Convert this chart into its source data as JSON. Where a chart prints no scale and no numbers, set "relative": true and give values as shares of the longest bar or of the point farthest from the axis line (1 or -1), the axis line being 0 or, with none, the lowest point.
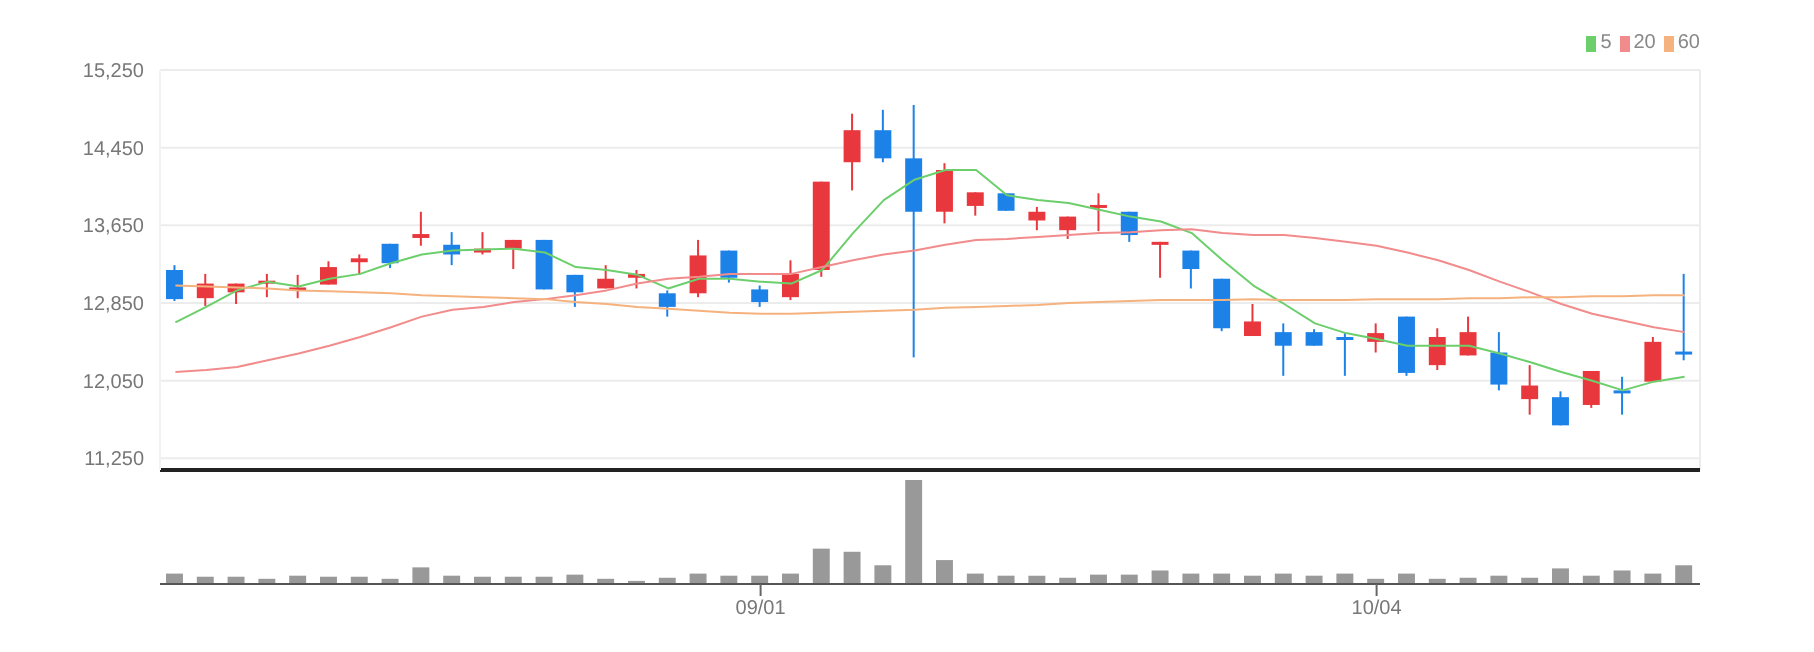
{
  "chart_data": [
    {
      "type": "candlestick",
      "categories": [
        null,
        null,
        null,
        null,
        null,
        null,
        null,
        null,
        null,
        null,
        null,
        null,
        null,
        null,
        null,
        null,
        null,
        null,
        null,
        null,
        null,
        null,
        null,
        null,
        null,
        null,
        null,
        null,
        null,
        null,
        null,
        null,
        null,
        null,
        null,
        null,
        null,
        null,
        null,
        null,
        null,
        null,
        null,
        null,
        null,
        null,
        null,
        null,
        null,
        null
      ],
      "ohlc": [
        [
          13190,
          13240,
          12870,
          12890
        ],
        [
          12900,
          13150,
          12820,
          13050
        ],
        [
          12960,
          13050,
          12840,
          13050
        ],
        [
          13050,
          13150,
          12910,
          13080
        ],
        [
          12990,
          13140,
          12900,
          13010
        ],
        [
          13040,
          13280,
          13040,
          13220
        ],
        [
          13270,
          13350,
          13140,
          13310
        ],
        [
          13460,
          13460,
          13210,
          13260
        ],
        [
          13520,
          13790,
          13440,
          13560
        ],
        [
          13450,
          13580,
          13240,
          13350
        ],
        [
          13370,
          13580,
          13350,
          13410
        ],
        [
          13410,
          13500,
          13200,
          13500
        ],
        [
          13500,
          13500,
          12990,
          12990
        ],
        [
          13140,
          13140,
          12810,
          12960
        ],
        [
          13000,
          13240,
          13000,
          13100
        ],
        [
          13110,
          13190,
          13000,
          13150
        ],
        [
          12950,
          12980,
          12710,
          12810
        ],
        [
          12950,
          13500,
          12910,
          13340
        ],
        [
          13390,
          13390,
          13060,
          13110
        ],
        [
          12990,
          13030,
          12810,
          12860
        ],
        [
          12910,
          13290,
          12880,
          13150
        ],
        [
          13190,
          14100,
          13120,
          14100
        ],
        [
          14300,
          14800,
          14010,
          14630
        ],
        [
          14630,
          14840,
          14300,
          14340
        ],
        [
          14340,
          14890,
          12290,
          13790
        ],
        [
          13790,
          14290,
          13670,
          14220
        ],
        [
          13850,
          13990,
          13750,
          13990
        ],
        [
          13980,
          13980,
          13800,
          13800
        ],
        [
          13700,
          13840,
          13600,
          13790
        ],
        [
          13600,
          13740,
          13510,
          13740
        ],
        [
          13840,
          13980,
          13590,
          13860
        ],
        [
          13790,
          13790,
          13480,
          13550
        ],
        [
          13460,
          13480,
          13110,
          13480
        ],
        [
          13390,
          13390,
          13000,
          13200
        ],
        [
          13100,
          13100,
          12560,
          12590
        ],
        [
          12510,
          12840,
          12510,
          12660
        ],
        [
          12550,
          12640,
          12100,
          12410
        ],
        [
          12550,
          12580,
          12410,
          12410
        ],
        [
          12500,
          12540,
          12100,
          12470
        ],
        [
          12450,
          12640,
          12340,
          12540
        ],
        [
          12710,
          12710,
          12100,
          12130
        ],
        [
          12210,
          12590,
          12160,
          12500
        ],
        [
          12310,
          12710,
          12310,
          12550
        ],
        [
          12340,
          12550,
          11950,
          12010
        ],
        [
          11860,
          12210,
          11700,
          12000
        ],
        [
          11880,
          11940,
          11590,
          11590
        ],
        [
          11800,
          12150,
          11770,
          12150
        ],
        [
          11950,
          12090,
          11700,
          11930
        ],
        [
          12040,
          12500,
          12040,
          12450
        ],
        [
          12350,
          13150,
          12260,
          12320
        ]
      ],
      "colors": [
        "#1d82e8",
        "#e8383d",
        "#e8383d",
        "#e8383d",
        "#e8383d",
        "#e8383d",
        "#e8383d",
        "#1d82e8",
        "#e8383d",
        "#1d82e8",
        "#e8383d",
        "#e8383d",
        "#1d82e8",
        "#1d82e8",
        "#e8383d",
        "#e8383d",
        "#1d82e8",
        "#e8383d",
        "#1d82e8",
        "#1d82e8",
        "#e8383d",
        "#e8383d",
        "#e8383d",
        "#1d82e8",
        "#1d82e8",
        "#e8383d",
        "#e8383d",
        "#1d82e8",
        "#e8383d",
        "#e8383d",
        "#e8383d",
        "#1d82e8",
        "#e8383d",
        "#1d82e8",
        "#1d82e8",
        "#e8383d",
        "#1d82e8",
        "#1d82e8",
        "#1d82e8",
        "#e8383d",
        "#1d82e8",
        "#e8383d",
        "#e8383d",
        "#1d82e8",
        "#e8383d",
        "#1d82e8",
        "#e8383d",
        "#1d82e8",
        "#e8383d",
        "#1d82e8"
      ],
      "series": [
        {
          "name": "5",
          "type": "line",
          "color": "#6ccf6c",
          "values": [
            12650,
            12810,
            12980,
            13070,
            13020,
            13100,
            13150,
            13260,
            13350,
            13390,
            13400,
            13410,
            13370,
            13220,
            13190,
            13140,
            13000,
            13100,
            13100,
            13070,
            13050,
            13190,
            13570,
            13910,
            14120,
            14220,
            14220,
            13960,
            13910,
            13880,
            13810,
            13740,
            13690,
            13570,
            13290,
            13030,
            12840,
            12640,
            12540,
            12480,
            12410,
            12410,
            12410,
            12330,
            12240,
            12140,
            12050,
            11950,
            12040,
            12090
          ]
        },
        {
          "name": "20",
          "type": "line",
          "color": "#f28b8b",
          "values": [
            12140,
            12160,
            12190,
            12260,
            12330,
            12410,
            12500,
            12600,
            12710,
            12780,
            12810,
            12860,
            12890,
            12930,
            12980,
            13050,
            13100,
            13120,
            13150,
            13150,
            13150,
            13220,
            13290,
            13350,
            13390,
            13450,
            13500,
            13510,
            13530,
            13550,
            13570,
            13580,
            13600,
            13610,
            13570,
            13550,
            13550,
            13520,
            13480,
            13440,
            13370,
            13290,
            13190,
            13070,
            12960,
            12840,
            12740,
            12670,
            12600,
            12550
          ]
        },
        {
          "name": "60",
          "type": "line",
          "color": "#f5b27e",
          "values": [
            13030,
            13020,
            13010,
            13000,
            12980,
            12970,
            12960,
            12950,
            12930,
            12920,
            12910,
            12900,
            12890,
            12860,
            12840,
            12810,
            12790,
            12770,
            12750,
            12740,
            12740,
            12750,
            12760,
            12770,
            12780,
            12800,
            12810,
            12820,
            12830,
            12850,
            12860,
            12870,
            12880,
            12880,
            12880,
            12890,
            12880,
            12880,
            12880,
            12890,
            12890,
            12890,
            12900,
            12900,
            12910,
            12910,
            12920,
            12920,
            12930,
            12930
          ]
        }
      ],
      "ylim": [
        11130,
        15250
      ],
      "yticks": [
        {
          "value": 11250,
          "label": "11,250"
        },
        {
          "value": 12050,
          "label": "12,050"
        },
        {
          "value": 12850,
          "label": "12,850"
        },
        {
          "value": 13650,
          "label": "13,650"
        },
        {
          "value": 14450,
          "label": "14,450"
        },
        {
          "value": 15250,
          "label": "15,250"
        }
      ],
      "grid": true,
      "legend": "top right",
      "tick_labels": "y"
    },
    {
      "type": "bar",
      "categories": [
        null,
        null,
        null,
        null,
        null,
        null,
        null,
        null,
        null,
        null,
        null,
        null,
        null,
        null,
        null,
        null,
        null,
        null,
        null,
        "09/01",
        null,
        null,
        null,
        null,
        null,
        null,
        null,
        null,
        null,
        null,
        null,
        null,
        null,
        null,
        null,
        null,
        null,
        null,
        null,
        "10/04",
        null,
        null,
        null,
        null,
        null,
        null,
        null,
        null,
        null,
        null
      ],
      "values": [
        0.1,
        0.07,
        0.07,
        0.05,
        0.08,
        0.07,
        0.07,
        0.05,
        0.16,
        0.08,
        0.07,
        0.07,
        0.07,
        0.09,
        0.05,
        0.03,
        0.06,
        0.1,
        0.08,
        0.08,
        0.1,
        0.34,
        0.31,
        0.18,
        1,
        0.23,
        0.1,
        0.08,
        0.08,
        0.06,
        0.09,
        0.09,
        0.13,
        0.1,
        0.1,
        0.08,
        0.1,
        0.08,
        0.1,
        0.05,
        0.1,
        0.05,
        0.06,
        0.08,
        0.06,
        0.15,
        0.08,
        0.13,
        0.1,
        0.18
      ],
      "color": "#999999",
      "relative": true,
      "tick_labels": "x"
    }
  ]
}
